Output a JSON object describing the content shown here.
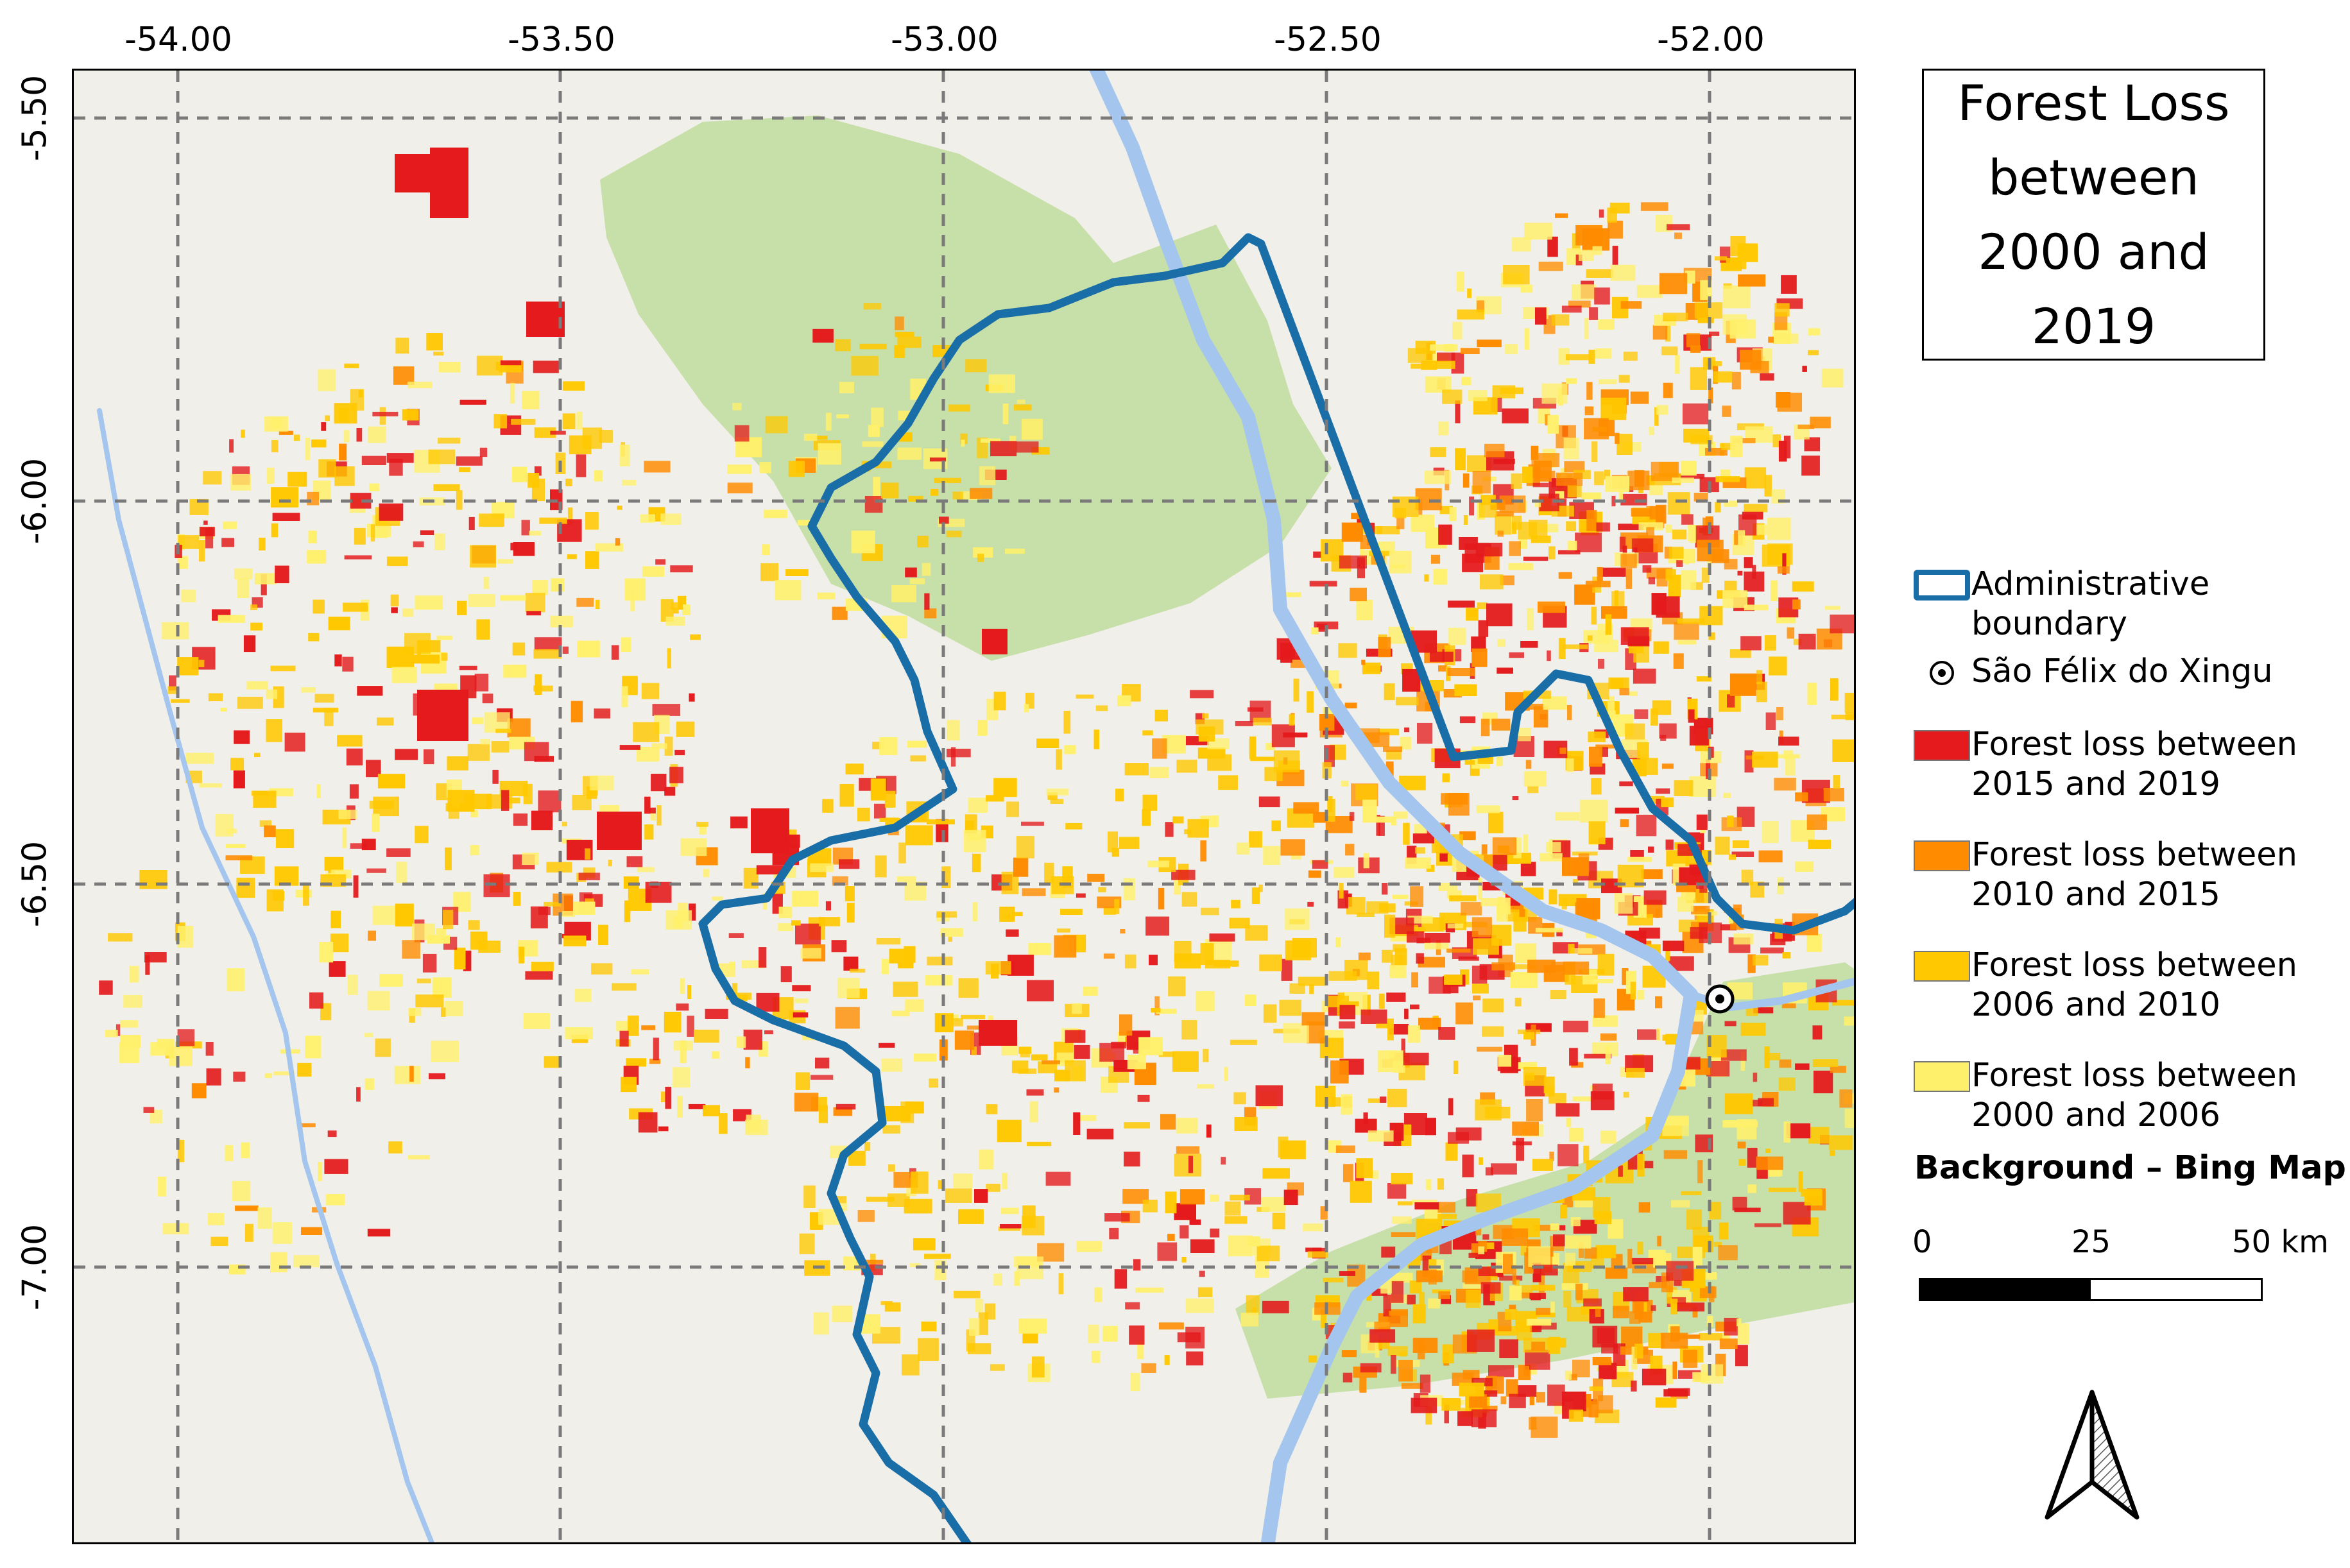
{
  "title": "Forest Loss between 2000 and 2019",
  "longitude_ticks": [
    "-54.00",
    "-53.50",
    "-53.00",
    "-52.50",
    "-52.00"
  ],
  "latitude_ticks": [
    "-5.50",
    "-6.00",
    "-6.50",
    "-7.00"
  ],
  "legend": {
    "boundary_label": "Administrative boundary",
    "town_label": "São Félix do Xingu",
    "loss_classes": [
      {
        "label": "Forest loss between 2015 and 2019",
        "color": "#e41a1c"
      },
      {
        "label": "Forest loss between 2010 and 2015",
        "color": "#ff8c00"
      },
      {
        "label": "Forest loss between 2006 and 2010",
        "color": "#ffc800"
      },
      {
        "label": "Forest loss between 2000 and 2006",
        "color": "#fff06b"
      }
    ]
  },
  "background_note": "Background – Bing Map",
  "scale": {
    "labels": [
      "0",
      "25",
      "50 km"
    ]
  },
  "colors": {
    "boundary": "#1a6ea8",
    "river": "#a4c6ee",
    "protected_area": "#bfdc9c",
    "basemap": "#f1efe9",
    "grid": "#7a7a7a"
  }
}
